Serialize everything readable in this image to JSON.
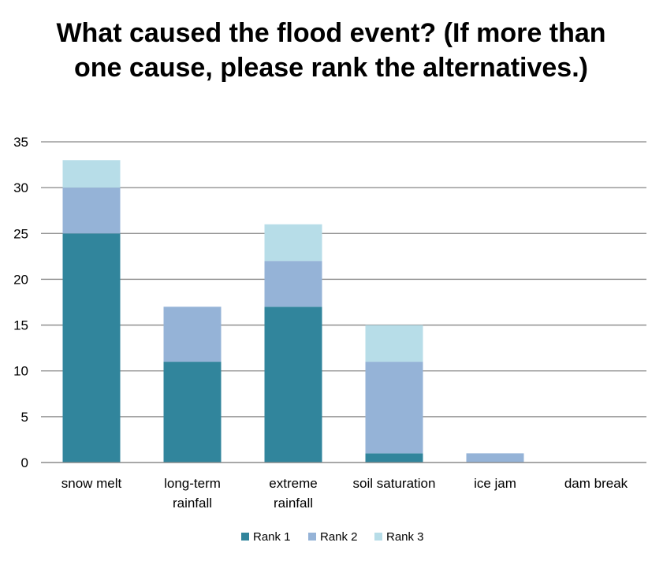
{
  "chart_data": {
    "type": "bar",
    "stacked": true,
    "title": "What caused the flood event? (If more than one cause, please rank the alternatives.)",
    "xlabel": "",
    "ylabel": "",
    "ylim": [
      0,
      35
    ],
    "yticks": [
      0,
      5,
      10,
      15,
      20,
      25,
      30,
      35
    ],
    "grid": true,
    "legend_position": "bottom",
    "categories": [
      [
        "snow melt"
      ],
      [
        "long-term",
        "rainfall"
      ],
      [
        "extreme",
        "rainfall"
      ],
      [
        "soil saturation"
      ],
      [
        "ice jam"
      ],
      [
        "dam break"
      ]
    ],
    "series": [
      {
        "name": "Rank 1",
        "color": "#31859C",
        "values": [
          25,
          11,
          17,
          1,
          0,
          0
        ]
      },
      {
        "name": "Rank 2",
        "color": "#95B3D7",
        "values": [
          5,
          6,
          5,
          10,
          1,
          0
        ]
      },
      {
        "name": "Rank 3",
        "color": "#B7DDE8",
        "values": [
          3,
          0,
          4,
          4,
          0,
          0
        ]
      }
    ]
  }
}
